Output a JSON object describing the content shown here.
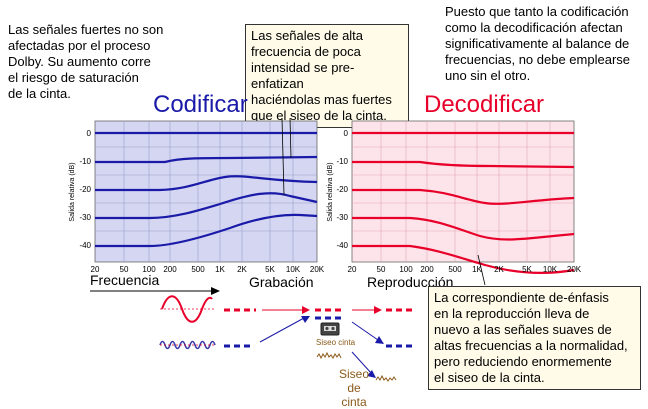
{
  "notes": {
    "top_left": "Las señales fuertes no son\nafectadas por el proceso\nDolby.  Su aumento corre\nel riesgo de saturación\nde la cinta.",
    "center_box": "Las señales de alta\nfrecuencia de poca\nintensidad se pre-enfatizan\nhaciéndolas mas fuertes\nque el siseo de la cinta.",
    "top_right": "Puesto que tanto la codificación\ncomo la decodificación afectan\nsignificativamente al balance de\nfrecuencias, no debe emplearse\nuno sin el otro.",
    "bottom_box": "La correspondiente de-énfasis\nen la reproducción lleva de\nnuevo a las señales suaves de\naltas frecuencias a la normalidad,\npero reduciendo enormemente\nel siseo de la cinta."
  },
  "titles": {
    "encode": "Codificar",
    "decode": "Decodificar"
  },
  "axis": {
    "ylabel": "Salida relativa (dB)",
    "yticks": [
      "0",
      "-10",
      "-20",
      "-30",
      "-40"
    ],
    "xticks": [
      "20",
      "50",
      "100",
      "200",
      "500",
      "1K",
      "2K",
      "5K",
      "10K",
      "20K"
    ]
  },
  "labels": {
    "frequency": "Frecuencia",
    "recording": "Grabación",
    "playback": "Reproducción",
    "tape_hiss_small": "Siseo cinta",
    "tape_hiss": "Siseo\nde cinta"
  },
  "colors": {
    "encode": "#1a1aa8",
    "decode": "#e8002a",
    "encode_bg": "#d4d6f2",
    "decode_bg": "#fde4ea"
  }
}
